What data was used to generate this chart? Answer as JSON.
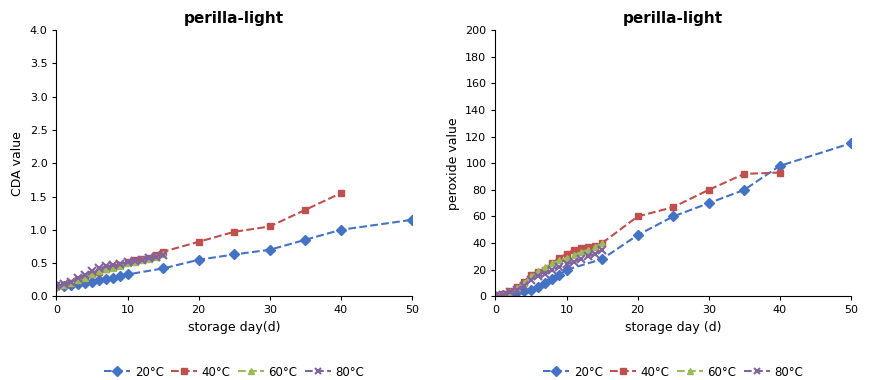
{
  "left_title": "perilla-light",
  "right_title": "perilla-light",
  "left_ylabel": "CDA value",
  "right_ylabel": "peroxide value",
  "left_xlabel": "storage day(d)",
  "right_xlabel": "storage day (d)",
  "cda_20": {
    "x": [
      0,
      1,
      2,
      3,
      4,
      5,
      6,
      7,
      8,
      9,
      10,
      15,
      20,
      25,
      30,
      35,
      40,
      50
    ],
    "y": [
      0.15,
      0.16,
      0.17,
      0.18,
      0.2,
      0.22,
      0.24,
      0.26,
      0.28,
      0.3,
      0.33,
      0.42,
      0.55,
      0.63,
      0.7,
      0.85,
      1.0,
      1.15
    ]
  },
  "cda_40": {
    "x": [
      0,
      1,
      2,
      3,
      4,
      5,
      6,
      7,
      8,
      9,
      10,
      11,
      12,
      13,
      14,
      15,
      20,
      25,
      30,
      35,
      40
    ],
    "y": [
      0.15,
      0.17,
      0.2,
      0.24,
      0.28,
      0.33,
      0.37,
      0.41,
      0.44,
      0.47,
      0.52,
      0.54,
      0.56,
      0.58,
      0.62,
      0.67,
      0.82,
      0.97,
      1.05,
      1.3,
      1.55
    ]
  },
  "cda_60": {
    "x": [
      0,
      1,
      2,
      3,
      4,
      5,
      6,
      7,
      8,
      9,
      10,
      11,
      12,
      13,
      14,
      15
    ],
    "y": [
      0.15,
      0.17,
      0.2,
      0.24,
      0.28,
      0.34,
      0.38,
      0.41,
      0.43,
      0.46,
      0.5,
      0.52,
      0.54,
      0.56,
      0.59,
      0.63
    ]
  },
  "cda_80": {
    "x": [
      0,
      1,
      2,
      3,
      4,
      5,
      6,
      7,
      8,
      9,
      10,
      11,
      12,
      13,
      14,
      15
    ],
    "y": [
      0.15,
      0.18,
      0.22,
      0.27,
      0.32,
      0.38,
      0.42,
      0.45,
      0.47,
      0.49,
      0.51,
      0.53,
      0.55,
      0.57,
      0.59,
      0.62
    ]
  },
  "pv_20": {
    "x": [
      0,
      1,
      2,
      3,
      4,
      5,
      6,
      7,
      8,
      9,
      10,
      15,
      20,
      25,
      30,
      35,
      40,
      50
    ],
    "y": [
      0,
      1,
      2,
      3,
      4,
      5,
      7,
      10,
      13,
      16,
      20,
      28,
      46,
      60,
      70,
      80,
      98,
      115
    ]
  },
  "pv_40": {
    "x": [
      0,
      1,
      2,
      3,
      4,
      5,
      6,
      7,
      8,
      9,
      10,
      11,
      12,
      13,
      14,
      15,
      20,
      25,
      30,
      35,
      40
    ],
    "y": [
      0,
      2,
      4,
      7,
      11,
      16,
      18,
      20,
      25,
      29,
      32,
      35,
      36,
      37,
      38,
      40,
      60,
      67,
      80,
      92,
      93
    ]
  },
  "pv_60": {
    "x": [
      0,
      1,
      2,
      3,
      4,
      5,
      6,
      7,
      8,
      9,
      10,
      11,
      12,
      13,
      14,
      15
    ],
    "y": [
      0,
      1,
      3,
      6,
      10,
      15,
      19,
      22,
      25,
      27,
      29,
      31,
      33,
      35,
      37,
      40
    ]
  },
  "pv_80": {
    "x": [
      0,
      1,
      2,
      3,
      4,
      5,
      6,
      7,
      8,
      9,
      10,
      11,
      12,
      13,
      14,
      15
    ],
    "y": [
      0,
      1,
      3,
      5,
      8,
      12,
      15,
      17,
      20,
      22,
      24,
      26,
      28,
      30,
      32,
      35
    ]
  },
  "colors": {
    "20": "#4472C4",
    "40": "#C0504D",
    "60": "#9BBB59",
    "80": "#8064A2"
  },
  "left_ylim": [
    0,
    4
  ],
  "left_yticks": [
    0,
    0.5,
    1.0,
    1.5,
    2.0,
    2.5,
    3.0,
    3.5,
    4.0
  ],
  "right_ylim": [
    0,
    200
  ],
  "right_yticks": [
    0,
    20,
    40,
    60,
    80,
    100,
    120,
    140,
    160,
    180,
    200
  ],
  "xlim": [
    0,
    50
  ],
  "xticks": [
    0,
    10,
    20,
    30,
    40,
    50
  ],
  "legend_labels": [
    "20°C",
    "40°C",
    "60°C",
    "80°C"
  ],
  "bg_color": "#FFFFFF"
}
